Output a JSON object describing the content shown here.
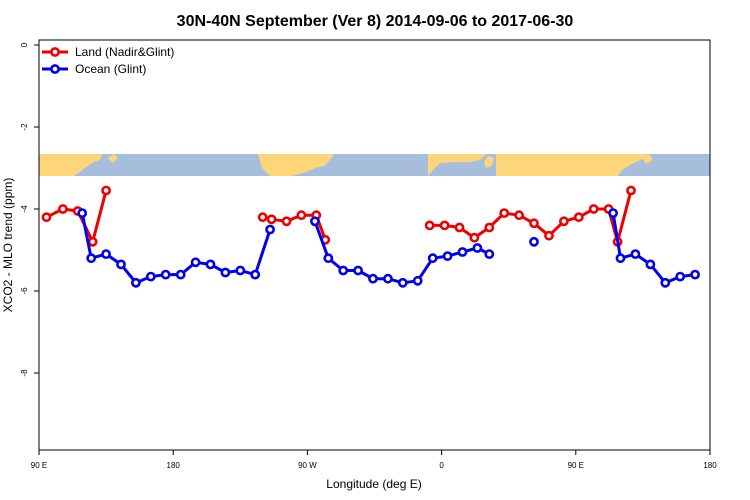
{
  "chart_data": {
    "type": "line",
    "title": "30N-40N September (Ver 8)   2014-09-06 to 2017-06-30",
    "xlabel": "Longitude (deg E)",
    "ylabel": "XCO2 - MLO trend (ppm)",
    "xlim": [
      90,
      540
    ],
    "ylim": [
      -10,
      0.2
    ],
    "x_ticks": [
      {
        "value": 90,
        "label": "90 E"
      },
      {
        "value": 180,
        "label": "180"
      },
      {
        "value": 270,
        "label": "90 W"
      },
      {
        "value": 360,
        "label": "0"
      },
      {
        "value": 450,
        "label": "90 E"
      },
      {
        "value": 540,
        "label": "180"
      }
    ],
    "y_ticks": [
      {
        "value": 0,
        "label": "0"
      },
      {
        "value": -2,
        "label": "-2"
      },
      {
        "value": -4,
        "label": "-4"
      },
      {
        "value": -6,
        "label": "-6"
      },
      {
        "value": -8,
        "label": "-8"
      }
    ],
    "legend_position": "top-left",
    "map_strip": {
      "y_top": -2.65,
      "y_bottom": -3.2,
      "ocean_color": "#a6bddb",
      "land_color": "#fdd67a"
    },
    "series": [
      {
        "name": "Land (Nadir&Glint)",
        "color": "#ee0000",
        "segments": [
          [
            [
              95,
              -4.2
            ],
            [
              106,
              -4.0
            ],
            [
              116,
              -4.05
            ],
            [
              126,
              -4.8
            ],
            [
              135,
              -3.55
            ]
          ],
          [
            [
              240,
              -4.2
            ],
            [
              246,
              -4.25
            ],
            [
              256,
              -4.3
            ],
            [
              266,
              -4.15
            ],
            [
              276,
              -4.15
            ],
            [
              282,
              -4.75
            ]
          ],
          [
            [
              352,
              -4.4
            ],
            [
              362,
              -4.4
            ],
            [
              372,
              -4.45
            ],
            [
              382,
              -4.7
            ],
            [
              392,
              -4.45
            ],
            [
              402,
              -4.1
            ],
            [
              412,
              -4.15
            ],
            [
              422,
              -4.35
            ],
            [
              432,
              -4.65
            ],
            [
              442,
              -4.3
            ],
            [
              452,
              -4.2
            ],
            [
              462,
              -4.0
            ],
            [
              472,
              -4.0
            ],
            [
              478,
              -4.8
            ],
            [
              487,
              -3.55
            ]
          ]
        ]
      },
      {
        "name": "Ocean (Glint)",
        "color": "#0000ee",
        "segments": [
          [
            [
              119,
              -4.1
            ],
            [
              125,
              -5.2
            ],
            [
              135,
              -5.1
            ],
            [
              145,
              -5.35
            ],
            [
              155,
              -5.8
            ],
            [
              165,
              -5.65
            ],
            [
              175,
              -5.6
            ],
            [
              185,
              -5.6
            ],
            [
              195,
              -5.3
            ],
            [
              205,
              -5.35
            ],
            [
              215,
              -5.55
            ],
            [
              225,
              -5.5
            ],
            [
              235,
              -5.6
            ],
            [
              245,
              -4.5
            ]
          ],
          [
            [
              275,
              -4.3
            ],
            [
              284,
              -5.2
            ],
            [
              294,
              -5.5
            ],
            [
              304,
              -5.5
            ],
            [
              314,
              -5.7
            ],
            [
              324,
              -5.7
            ],
            [
              334,
              -5.8
            ],
            [
              344,
              -5.75
            ],
            [
              354,
              -5.2
            ],
            [
              364,
              -5.15
            ],
            [
              374,
              -5.05
            ],
            [
              384,
              -4.95
            ],
            [
              392,
              -5.1
            ]
          ],
          [
            [
              422,
              -4.8
            ]
          ],
          [
            [
              475,
              -4.1
            ],
            [
              480,
              -5.2
            ],
            [
              490,
              -5.1
            ],
            [
              500,
              -5.35
            ],
            [
              510,
              -5.8
            ],
            [
              520,
              -5.65
            ],
            [
              530,
              -5.6
            ]
          ]
        ]
      }
    ]
  }
}
